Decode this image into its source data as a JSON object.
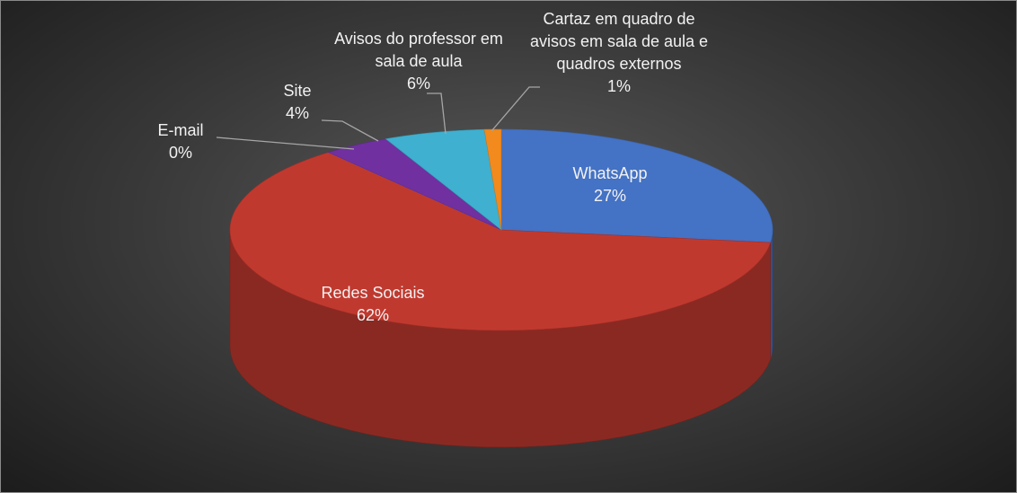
{
  "chart_data": {
    "type": "pie",
    "categories": [
      "WhatsApp",
      "Redes Sociais",
      "E-mail",
      "Site",
      "Avisos do professor em sala de aula",
      "Cartaz em quadro de avisos em sala de aula e quadros externos"
    ],
    "values": [
      27,
      62,
      0,
      4,
      6,
      1
    ],
    "value_labels": [
      "27%",
      "62%",
      "0%",
      "4%",
      "6%",
      "1%"
    ],
    "colors": [
      "#4472c4",
      "#c0392f",
      "#a5a5a5",
      "#7030a0",
      "#3fb0cf",
      "#f28a1e"
    ]
  }
}
